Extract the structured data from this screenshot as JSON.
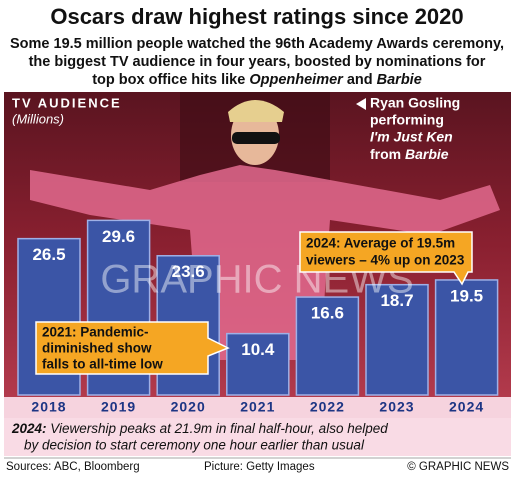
{
  "chart_data": {
    "type": "bar",
    "title": "Oscars draw highest ratings since 2020",
    "subtitle": [
      "Some 19.5 million people watched the 96th Academy Awards ceremony,",
      "the biggest TV audience in four years, boosted by nominations for",
      "top box office hits like ",
      "Oppenheimer",
      " and ",
      "Barbie"
    ],
    "axis_title": "TV AUDIENCE",
    "unit": "(Millions)",
    "categories": [
      "2018",
      "2019",
      "2020",
      "2021",
      "2022",
      "2023",
      "2024"
    ],
    "values": [
      26.5,
      29.6,
      23.6,
      10.4,
      16.6,
      18.7,
      19.5
    ],
    "color": "#3b55a6",
    "annotations": [
      [
        "2021: Pandemic-",
        "diminished show",
        "falls to all-time low"
      ],
      [
        "2024: Average of 19.5m",
        "viewers – 4% up on 2023"
      ]
    ],
    "photo_caption": [
      "Ryan Gosling",
      "performing",
      "I'm Just Ken",
      "from ",
      "Barbie"
    ],
    "note": [
      "2024:",
      " Viewership peaks at 21.9m in final half-hour, also helped",
      "by decision to start ceremony one hour earlier than usual"
    ],
    "sources": "Sources: ABC, Bloomberg",
    "picture": "Picture: Getty Images",
    "credit": "© GRAPHIC NEWS",
    "watermark": "GRAPHIC NEWS"
  }
}
